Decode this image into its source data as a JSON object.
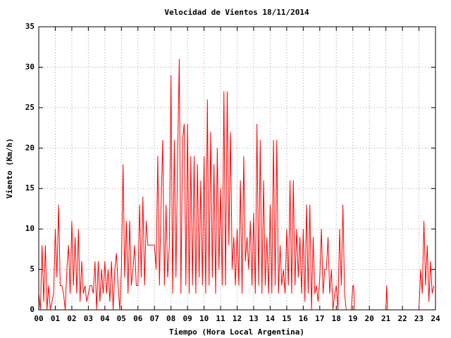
{
  "chart_data": {
    "type": "line",
    "title": "Velocidad de Vientos 18/11/2014",
    "xlabel": "Tiempo (Hora Local Argentina)",
    "ylabel": "Viento (Km/h)",
    "xlim": [
      0,
      24
    ],
    "ylim": [
      0,
      35
    ],
    "xticks": [
      {
        "value": 0,
        "label": "00"
      },
      {
        "value": 1,
        "label": "01"
      },
      {
        "value": 2,
        "label": "02"
      },
      {
        "value": 3,
        "label": "03"
      },
      {
        "value": 4,
        "label": "04"
      },
      {
        "value": 5,
        "label": "05"
      },
      {
        "value": 6,
        "label": "06"
      },
      {
        "value": 7,
        "label": "07"
      },
      {
        "value": 8,
        "label": "08"
      },
      {
        "value": 9,
        "label": "09"
      },
      {
        "value": 10,
        "label": "10"
      },
      {
        "value": 11,
        "label": "11"
      },
      {
        "value": 12,
        "label": "12"
      },
      {
        "value": 13,
        "label": "13"
      },
      {
        "value": 14,
        "label": "14"
      },
      {
        "value": 15,
        "label": "15"
      },
      {
        "value": 16,
        "label": "16"
      },
      {
        "value": 17,
        "label": "17"
      },
      {
        "value": 18,
        "label": "18"
      },
      {
        "value": 19,
        "label": "19"
      },
      {
        "value": 20,
        "label": "20"
      },
      {
        "value": 21,
        "label": "21"
      },
      {
        "value": 22,
        "label": "22"
      },
      {
        "value": 23,
        "label": "23"
      },
      {
        "value": 24,
        "label": "24"
      }
    ],
    "yticks": [
      0,
      5,
      10,
      15,
      20,
      25,
      30,
      35
    ],
    "grid": true,
    "x": [
      0,
      0.1,
      0.2,
      0.3,
      0.4,
      0.5,
      0.6,
      0.7,
      0.8,
      0.9,
      1,
      1.1,
      1.2,
      1.3,
      1.4,
      1.5,
      1.6,
      1.7,
      1.8,
      1.9,
      2,
      2.1,
      2.2,
      2.3,
      2.4,
      2.5,
      2.6,
      2.7,
      2.8,
      2.9,
      3,
      3.1,
      3.2,
      3.3,
      3.4,
      3.5,
      3.6,
      3.7,
      3.8,
      3.9,
      4,
      4.1,
      4.2,
      4.3,
      4.4,
      4.5,
      4.6,
      4.7,
      4.8,
      4.9,
      5,
      5.1,
      5.2,
      5.3,
      5.4,
      5.5,
      5.6,
      5.7,
      5.8,
      5.9,
      6,
      6.1,
      6.2,
      6.3,
      6.4,
      6.5,
      6.6,
      6.7,
      6.8,
      6.9,
      7,
      7.1,
      7.2,
      7.3,
      7.4,
      7.5,
      7.6,
      7.7,
      7.8,
      7.9,
      8,
      8.1,
      8.2,
      8.3,
      8.4,
      8.5,
      8.6,
      8.7,
      8.8,
      8.9,
      9,
      9.1,
      9.2,
      9.3,
      9.4,
      9.5,
      9.6,
      9.7,
      9.8,
      9.9,
      10,
      10.1,
      10.2,
      10.3,
      10.4,
      10.5,
      10.6,
      10.7,
      10.8,
      10.9,
      11,
      11.1,
      11.2,
      11.3,
      11.4,
      11.5,
      11.6,
      11.7,
      11.8,
      11.9,
      12,
      12.1,
      12.2,
      12.3,
      12.4,
      12.5,
      12.6,
      12.7,
      12.8,
      12.9,
      13,
      13.1,
      13.2,
      13.3,
      13.4,
      13.5,
      13.6,
      13.7,
      13.8,
      13.9,
      14,
      14.1,
      14.2,
      14.3,
      14.4,
      14.5,
      14.6,
      14.7,
      14.8,
      14.9,
      15,
      15.1,
      15.2,
      15.3,
      15.4,
      15.5,
      15.6,
      15.7,
      15.8,
      15.9,
      16,
      16.1,
      16.2,
      16.3,
      16.4,
      16.5,
      16.6,
      16.7,
      16.8,
      16.9,
      17,
      17.1,
      17.2,
      17.3,
      17.4,
      17.5,
      17.6,
      17.7,
      17.8,
      17.9,
      18,
      18.1,
      18.2,
      18.3,
      18.4,
      18.5,
      18.6,
      18.7,
      18.8,
      18.9,
      19,
      19.05,
      19.1,
      21,
      21.05,
      21.1,
      23,
      23.1,
      23.2,
      23.3,
      23.4,
      23.5,
      23.6,
      23.7,
      23.8,
      23.9
    ],
    "series": [
      {
        "name": "Viento",
        "color": "#ff0000",
        "values": [
          2,
          0,
          8,
          1,
          8,
          0,
          3,
          0,
          1,
          2,
          10,
          4,
          13,
          3,
          3,
          2,
          0,
          5,
          8,
          2,
          11,
          3,
          9,
          2,
          10,
          1,
          6,
          2,
          3,
          1,
          2,
          3,
          3,
          2,
          6,
          0,
          6,
          1,
          5,
          2,
          6,
          2,
          5,
          1,
          6,
          0,
          5,
          7,
          3,
          0,
          5,
          18,
          4,
          11,
          2,
          11,
          3,
          5,
          8,
          3,
          3,
          13,
          4,
          14,
          3,
          11,
          8,
          8,
          8,
          8,
          8,
          5,
          19,
          3,
          13,
          21,
          3,
          13,
          4,
          8,
          29,
          2,
          21,
          4,
          19,
          31,
          2,
          21,
          23,
          3,
          23,
          2,
          19,
          3,
          19,
          2,
          18,
          4,
          16,
          3,
          19,
          2,
          26,
          3,
          22,
          4,
          18,
          2,
          20,
          5,
          15,
          3,
          27,
          3,
          27,
          8,
          22,
          5,
          9,
          3,
          10,
          3,
          16,
          2,
          19,
          6,
          9,
          5,
          11,
          3,
          12,
          2,
          23,
          3,
          21,
          2,
          16,
          3,
          9,
          2,
          13,
          2,
          21,
          3,
          21,
          2,
          8,
          3,
          5,
          2,
          10,
          3,
          16,
          2,
          16,
          3,
          10,
          4,
          9,
          2,
          10,
          1,
          13,
          2,
          13,
          0,
          9,
          2,
          3,
          1,
          4,
          10,
          2,
          5,
          5,
          9,
          2,
          5,
          0,
          2,
          3,
          0,
          10,
          3,
          13,
          2,
          0,
          0,
          0,
          0,
          3,
          3,
          0,
          0,
          3,
          0,
          0,
          5,
          2,
          11,
          3,
          8,
          1,
          6,
          2,
          3
        ]
      }
    ]
  }
}
